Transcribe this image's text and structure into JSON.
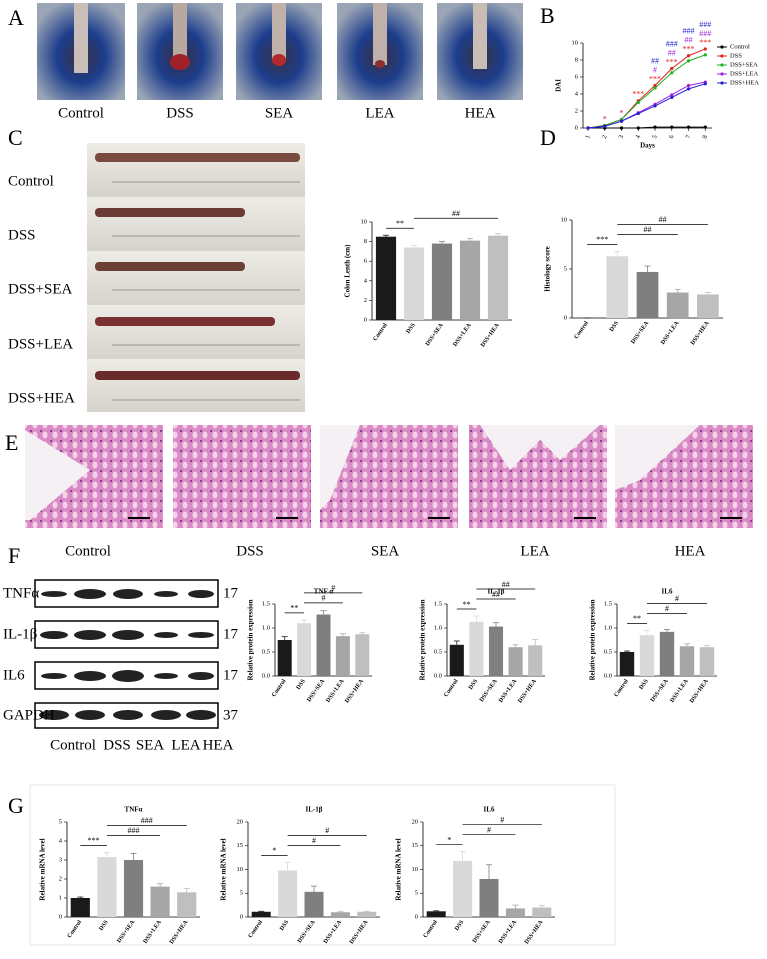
{
  "figure": {
    "panel_labels": [
      "A",
      "B",
      "C",
      "D",
      "E",
      "F",
      "G"
    ],
    "photo_labels": [
      "Control",
      "DSS",
      "SEA",
      "LEA",
      "HEA"
    ],
    "colon_labels": [
      "Control",
      "DSS",
      "DSS+SEA",
      "DSS+LEA",
      "DSS+HEA"
    ],
    "histology_labels": [
      "Control",
      "DSS",
      "SEA",
      "LEA",
      "HEA"
    ],
    "blot": {
      "rows": [
        {
          "name": "TNFα",
          "size": 17
        },
        {
          "name": "IL-1β",
          "size": 17
        },
        {
          "name": "IL6",
          "size": 17
        },
        {
          "name": "GAPDH",
          "size": 37
        }
      ],
      "lanes": [
        "Control",
        "DSS",
        "SEA",
        "LEA",
        "HEA"
      ]
    }
  },
  "chart_data": [
    {
      "type": "line",
      "y_label": "DAI",
      "x_label": "Days",
      "x": [
        1,
        2,
        3,
        4,
        5,
        6,
        7,
        8
      ],
      "xlim": [
        0.7,
        8.4
      ],
      "xticks": [
        1,
        2,
        3,
        4,
        5,
        6,
        7,
        8
      ],
      "ylim": [
        0,
        10
      ],
      "yticks": [
        0,
        2,
        4,
        6,
        8,
        10
      ],
      "legend": "right",
      "series": [
        {
          "name": "Control",
          "color": "#000000",
          "values": [
            0,
            0,
            0,
            0,
            0.1,
            0.1,
            0.1,
            0.1
          ]
        },
        {
          "name": "DSS",
          "color": "#e02020",
          "values": [
            0,
            0.3,
            1.0,
            3.2,
            5.0,
            7.0,
            8.5,
            9.3
          ]
        },
        {
          "name": "DSS+SEA",
          "color": "#20b020",
          "values": [
            0,
            0.3,
            1.0,
            3.0,
            4.7,
            6.5,
            7.9,
            8.6
          ]
        },
        {
          "name": "DSS+LEA",
          "color": "#a020e0",
          "values": [
            0,
            0.2,
            0.8,
            1.8,
            2.8,
            3.9,
            5.0,
            5.4
          ]
        },
        {
          "name": "DSS+HEA",
          "color": "#2020d0",
          "values": [
            0,
            0.2,
            0.8,
            1.7,
            2.6,
            3.6,
            4.6,
            5.2
          ]
        }
      ],
      "annotations": [
        {
          "x": 2,
          "text": "*",
          "color": "#e02020"
        },
        {
          "x": 3,
          "text": "*",
          "color": "#e02020"
        },
        {
          "x": 4,
          "text": "***",
          "color": "#e02020"
        },
        {
          "x": 5,
          "text": "***",
          "color": "#e02020"
        },
        {
          "x": 5,
          "text": "#",
          "color": "#a020e0"
        },
        {
          "x": 5,
          "text": "##",
          "color": "#2020d0"
        },
        {
          "x": 6,
          "text": "***",
          "color": "#e02020"
        },
        {
          "x": 6,
          "text": "##",
          "color": "#a020e0"
        },
        {
          "x": 6,
          "text": "###",
          "color": "#2020d0"
        },
        {
          "x": 7,
          "text": "***",
          "color": "#e02020"
        },
        {
          "x": 7,
          "text": "##",
          "color": "#a020e0"
        },
        {
          "x": 7,
          "text": "###",
          "color": "#2020d0"
        },
        {
          "x": 8,
          "text": "***",
          "color": "#e02020"
        },
        {
          "x": 8,
          "text": "###",
          "color": "#a020e0"
        },
        {
          "x": 8,
          "text": "###",
          "color": "#2020d0"
        }
      ]
    },
    {
      "type": "bar",
      "y_label": "Colon Lenth (cm)",
      "categories": [
        "Control",
        "DSS",
        "DSS+SEA",
        "DSS+LEA",
        "DSS+HEA"
      ],
      "values": [
        8.5,
        7.4,
        7.8,
        8.1,
        8.6
      ],
      "errors": [
        0.15,
        0.2,
        0.2,
        0.2,
        0.2
      ],
      "colors": [
        "#1a1a1a",
        "#d9d9d9",
        "#7f7f7f",
        "#a6a6a6",
        "#bfbfbf"
      ],
      "ylim": [
        0,
        10
      ],
      "yticks": [
        0,
        2,
        4,
        6,
        8,
        10
      ],
      "brackets": [
        {
          "from": "Control",
          "to": "DSS",
          "label": "**"
        },
        {
          "from": "DSS",
          "to": "DSS+HEA",
          "label": "##"
        }
      ]
    },
    {
      "type": "bar",
      "y_label": "Histology score",
      "categories": [
        "Control",
        "DSS",
        "DSS+SEA",
        "DSS+LEA",
        "DSS+HEA"
      ],
      "values": [
        0,
        6.3,
        4.7,
        2.6,
        2.4
      ],
      "errors": [
        0,
        0.5,
        0.6,
        0.3,
        0.2
      ],
      "colors": [
        "#1a1a1a",
        "#d9d9d9",
        "#7f7f7f",
        "#a6a6a6",
        "#bfbfbf"
      ],
      "ylim": [
        0,
        10
      ],
      "yticks": [
        0,
        5,
        10
      ],
      "brackets": [
        {
          "from": "Control",
          "to": "DSS",
          "label": "***"
        },
        {
          "from": "DSS",
          "to": "DSS+LEA",
          "label": "##"
        },
        {
          "from": "DSS",
          "to": "DSS+HEA",
          "label": "##"
        }
      ]
    },
    {
      "type": "bar",
      "title": "TNF α",
      "y_label": "Relative protein expression",
      "categories": [
        "Control",
        "DSS",
        "DSS+SEA",
        "DSS+LEA",
        "DSS+HEA"
      ],
      "values": [
        0.75,
        1.1,
        1.28,
        0.83,
        0.87
      ],
      "errors": [
        0.07,
        0.07,
        0.08,
        0.05,
        0.03
      ],
      "colors": [
        "#1a1a1a",
        "#d9d9d9",
        "#7f7f7f",
        "#a6a6a6",
        "#bfbfbf"
      ],
      "ylim": [
        0,
        1.5
      ],
      "yticks": [
        {
          "value": 0,
          "label": "0.0"
        },
        0.5,
        {
          "value": 1,
          "label": "1.0"
        },
        1.5
      ],
      "brackets": [
        {
          "from": "Control",
          "to": "DSS",
          "label": "**"
        },
        {
          "from": "DSS",
          "to": "DSS+LEA",
          "label": "#"
        },
        {
          "from": "DSS",
          "to": "DSS+HEA",
          "label": "#"
        }
      ]
    },
    {
      "type": "bar",
      "title": "IL-1β",
      "y_label": "Relative protein expression",
      "categories": [
        "Control",
        "DSS",
        "DSS+SEA",
        "DSS+LEA",
        "DSS+HEA"
      ],
      "values": [
        0.65,
        1.13,
        1.03,
        0.6,
        0.64
      ],
      "errors": [
        0.08,
        0.12,
        0.08,
        0.05,
        0.12
      ],
      "colors": [
        "#1a1a1a",
        "#d9d9d9",
        "#7f7f7f",
        "#a6a6a6",
        "#bfbfbf"
      ],
      "ylim": [
        0,
        1.5
      ],
      "yticks": [
        {
          "value": 0,
          "label": "0.0"
        },
        0.5,
        {
          "value": 1,
          "label": "1.0"
        },
        1.5
      ],
      "brackets": [
        {
          "from": "Control",
          "to": "DSS",
          "label": "**"
        },
        {
          "from": "DSS",
          "to": "DSS+LEA",
          "label": "##"
        },
        {
          "from": "DSS",
          "to": "DSS+HEA",
          "label": "##"
        }
      ]
    },
    {
      "type": "bar",
      "title": "IL6",
      "y_label": "Relative protein expression",
      "categories": [
        "Control",
        "DSS",
        "DSS+SEA",
        "DSS+LEA",
        "DSS+HEA"
      ],
      "values": [
        0.5,
        0.85,
        0.92,
        0.62,
        0.6
      ],
      "errors": [
        0.02,
        0.1,
        0.05,
        0.05,
        0.04
      ],
      "colors": [
        "#1a1a1a",
        "#d9d9d9",
        "#7f7f7f",
        "#a6a6a6",
        "#bfbfbf"
      ],
      "ylim": [
        0,
        1.5
      ],
      "yticks": [
        {
          "value": 0,
          "label": "0.0"
        },
        0.5,
        {
          "value": 1,
          "label": "1.0"
        },
        1.5
      ],
      "brackets": [
        {
          "from": "Control",
          "to": "DSS",
          "label": "**"
        },
        {
          "from": "DSS",
          "to": "DSS+LEA",
          "label": "#"
        },
        {
          "from": "DSS",
          "to": "DSS+HEA",
          "label": "#"
        }
      ]
    },
    {
      "type": "bar",
      "title": "TNFα",
      "y_label": "Relative mRNA level",
      "categories": [
        "Control",
        "DSS",
        "DSS+SEA",
        "DSS+LEA",
        "DSS+HEA"
      ],
      "values": [
        1.0,
        3.15,
        3.0,
        1.6,
        1.3
      ],
      "errors": [
        0.05,
        0.25,
        0.35,
        0.15,
        0.2
      ],
      "colors": [
        "#1a1a1a",
        "#d9d9d9",
        "#7f7f7f",
        "#a6a6a6",
        "#bfbfbf"
      ],
      "ylim": [
        0,
        5
      ],
      "yticks": [
        0,
        1,
        2,
        3,
        4,
        5
      ],
      "brackets": [
        {
          "from": "Control",
          "to": "DSS",
          "label": "***"
        },
        {
          "from": "DSS",
          "to": "DSS+LEA",
          "label": "###"
        },
        {
          "from": "DSS",
          "to": "DSS+HEA",
          "label": "###"
        }
      ]
    },
    {
      "type": "bar",
      "title": "IL-1β",
      "y_label": "Relative mRNA level",
      "categories": [
        "Control",
        "DSS",
        "DSS+SEA",
        "DSS+LEA",
        "DSS+HEA"
      ],
      "values": [
        1.1,
        9.8,
        5.3,
        1.0,
        1.1
      ],
      "errors": [
        0.1,
        1.7,
        1.2,
        0.1,
        0.1
      ],
      "colors": [
        "#1a1a1a",
        "#d9d9d9",
        "#7f7f7f",
        "#a6a6a6",
        "#bfbfbf"
      ],
      "ylim": [
        0,
        20
      ],
      "yticks": [
        0,
        5,
        10,
        15,
        20
      ],
      "brackets": [
        {
          "from": "Control",
          "to": "DSS",
          "label": "*"
        },
        {
          "from": "DSS",
          "to": "DSS+LEA",
          "label": "#"
        },
        {
          "from": "DSS",
          "to": "DSS+HEA",
          "label": "#"
        }
      ]
    },
    {
      "type": "bar",
      "title": "IL6",
      "y_label": "Relative mRNA level",
      "categories": [
        "Control",
        "DSS",
        "DSS+SEA",
        "DSS+LEA",
        "DSS+HEA"
      ],
      "values": [
        1.2,
        11.8,
        8.0,
        1.8,
        2.0
      ],
      "errors": [
        0.1,
        2.0,
        3.0,
        0.7,
        0.4
      ],
      "colors": [
        "#1a1a1a",
        "#d9d9d9",
        "#7f7f7f",
        "#a6a6a6",
        "#bfbfbf"
      ],
      "ylim": [
        0,
        20
      ],
      "yticks": [
        0,
        5,
        10,
        15,
        20
      ],
      "brackets": [
        {
          "from": "Control",
          "to": "DSS",
          "label": "*"
        },
        {
          "from": "DSS",
          "to": "DSS+LEA",
          "label": "#"
        },
        {
          "from": "DSS",
          "to": "DSS+HEA",
          "label": "#"
        }
      ]
    }
  ]
}
